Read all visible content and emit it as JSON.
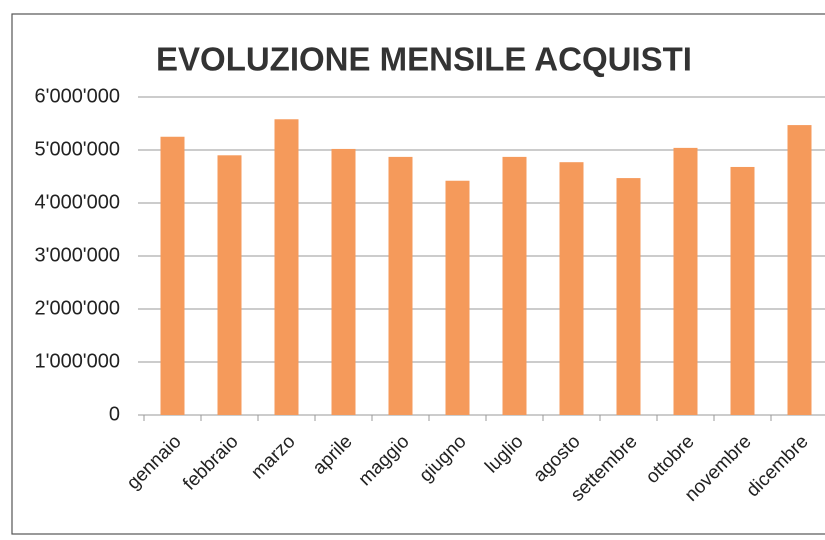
{
  "chart_data": {
    "type": "bar",
    "title": "EVOLUZIONE MENSILE ACQUISTI",
    "categories": [
      "gennaio",
      "febbraio",
      "marzo",
      "aprile",
      "maggio",
      "giugno",
      "luglio",
      "agosto",
      "settembre",
      "ottobre",
      "novembre",
      "dicembre"
    ],
    "values": [
      5250000,
      4900000,
      5580000,
      5020000,
      4870000,
      4420000,
      4870000,
      4770000,
      4470000,
      5040000,
      4680000,
      5470000
    ],
    "color": "#f59a5b",
    "ylim": [
      0,
      6000000
    ],
    "yticks": [
      0,
      {
        "value": 1000000,
        "label": "1'000'000"
      },
      {
        "value": 2000000,
        "label": "2'000'000"
      },
      {
        "value": 3000000,
        "label": "3'000'000"
      },
      {
        "value": 4000000,
        "label": "4'000'000"
      },
      {
        "value": 5000000,
        "label": "5'000'000"
      },
      {
        "value": 6000000,
        "label": "6'000'000"
      }
    ],
    "grid": true
  }
}
